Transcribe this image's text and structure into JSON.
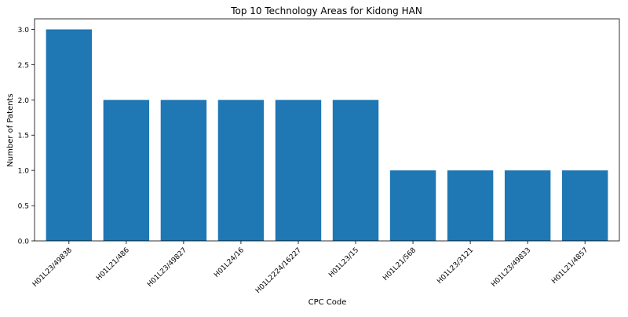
{
  "chart_data": {
    "type": "bar",
    "title": "Top 10 Technology Areas for Kidong HAN",
    "xlabel": "CPC Code",
    "ylabel": "Number of Patents",
    "categories": [
      "H01L23/49838",
      "H01L21/486",
      "H01L23/49827",
      "H01L24/16",
      "H01L2224/16227",
      "H01L23/15",
      "H01L21/568",
      "H01L23/3121",
      "H01L23/49833",
      "H01L21/4857"
    ],
    "values": [
      3,
      2,
      2,
      2,
      2,
      2,
      1,
      1,
      1,
      1
    ],
    "ylim": [
      0,
      3.15
    ],
    "yticks": [
      "0.0",
      "0.5",
      "1.0",
      "1.5",
      "2.0",
      "2.5",
      "3.0"
    ],
    "bar_color": "#1f77b4",
    "grid": false,
    "legend": "none"
  }
}
